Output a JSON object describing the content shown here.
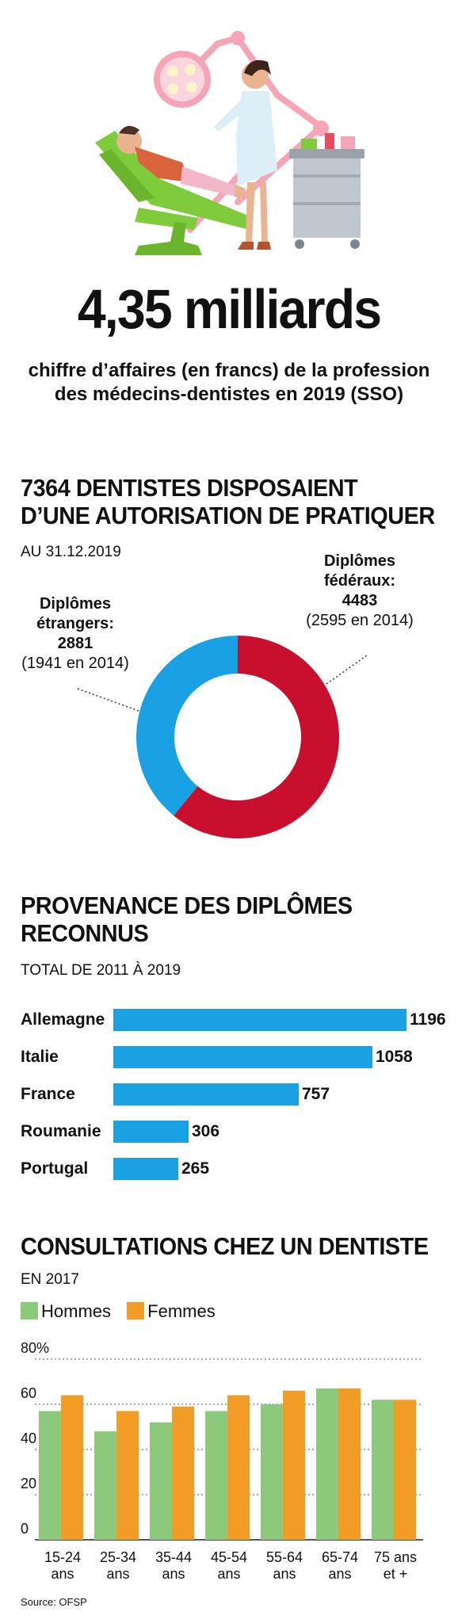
{
  "headline": {
    "value": "4,35 milliards",
    "caption_lines": [
      "chiffre d’affaires (en francs) de la profession",
      "des médecins-dentistes en 2019 (SSO)"
    ]
  },
  "colors": {
    "red": "#c8102e",
    "blue": "#1aa1e3",
    "green": "#8cc97b",
    "orange": "#f39c25"
  },
  "donut_section": {
    "title_lines": [
      "7364 DENTISTES DISPOSAIENT",
      "D’UNE AUTORISATION DE PRATIQUER"
    ],
    "subtitle": "AU 31.12.2019",
    "foreign": {
      "line1": "Diplômes",
      "line2": "étrangers:",
      "value": "2881",
      "note": "(1941 en 2014)"
    },
    "federal": {
      "line1": "Diplômes",
      "line2": "fédéraux:",
      "value": "4483",
      "note": "(2595 en 2014)"
    }
  },
  "bars_section": {
    "title_lines": [
      "PROVENANCE DES DIPLÔMES",
      "RECONNUS"
    ],
    "subtitle": "TOTAL DE 2011 À 2019"
  },
  "consult_section": {
    "title_lines": [
      "CONSULTATIONS CHEZ UN DENTISTE"
    ],
    "subtitle": "EN 2017",
    "legend": [
      "Hommes",
      "Femmes"
    ]
  },
  "source": "Source: OFSP",
  "chart_data": [
    {
      "type": "pie",
      "title": "7364 DENTISTES DISPOSAIENT D’UNE AUTORISATION DE PRATIQUER",
      "subtitle": "AU 31.12.2019",
      "donut": true,
      "slices": [
        {
          "label": "Diplômes fédéraux",
          "value": 4483,
          "value_2014": 2595,
          "color": "#c8102e"
        },
        {
          "label": "Diplômes étrangers",
          "value": 2881,
          "value_2014": 1941,
          "color": "#1aa1e3"
        }
      ]
    },
    {
      "type": "bar",
      "orientation": "horizontal",
      "title": "PROVENANCE DES DIPLÔMES RECONNUS",
      "subtitle": "TOTAL DE 2011 À 2019",
      "categories": [
        "Allemagne",
        "Italie",
        "France",
        "Roumanie",
        "Portugal"
      ],
      "values": [
        1196,
        1058,
        757,
        306,
        265
      ],
      "value_labels": [
        "1196",
        "1058",
        "757",
        "306",
        "265"
      ],
      "color": "#1aa1e3"
    },
    {
      "type": "bar",
      "title": "CONSULTATIONS CHEZ UN DENTISTE",
      "subtitle": "EN 2017",
      "categories": [
        [
          "15-24",
          "ans"
        ],
        [
          "25-34",
          "ans"
        ],
        [
          "35-44",
          "ans"
        ],
        [
          "45-54",
          "ans"
        ],
        [
          "55-64",
          "ans"
        ],
        [
          "65-74",
          "ans"
        ],
        [
          "75 ans",
          "et +"
        ]
      ],
      "series": [
        {
          "name": "Hommes",
          "values": [
            57,
            48,
            52,
            57,
            60,
            67,
            62
          ],
          "color": "#8cc97b"
        },
        {
          "name": "Femmes",
          "values": [
            64,
            57,
            59,
            64,
            66,
            67,
            62
          ],
          "color": "#f39c25"
        }
      ],
      "yticks": [
        "80%",
        "60",
        "40",
        "20",
        "0"
      ],
      "ylim": [
        0,
        80
      ],
      "grid": true
    }
  ]
}
